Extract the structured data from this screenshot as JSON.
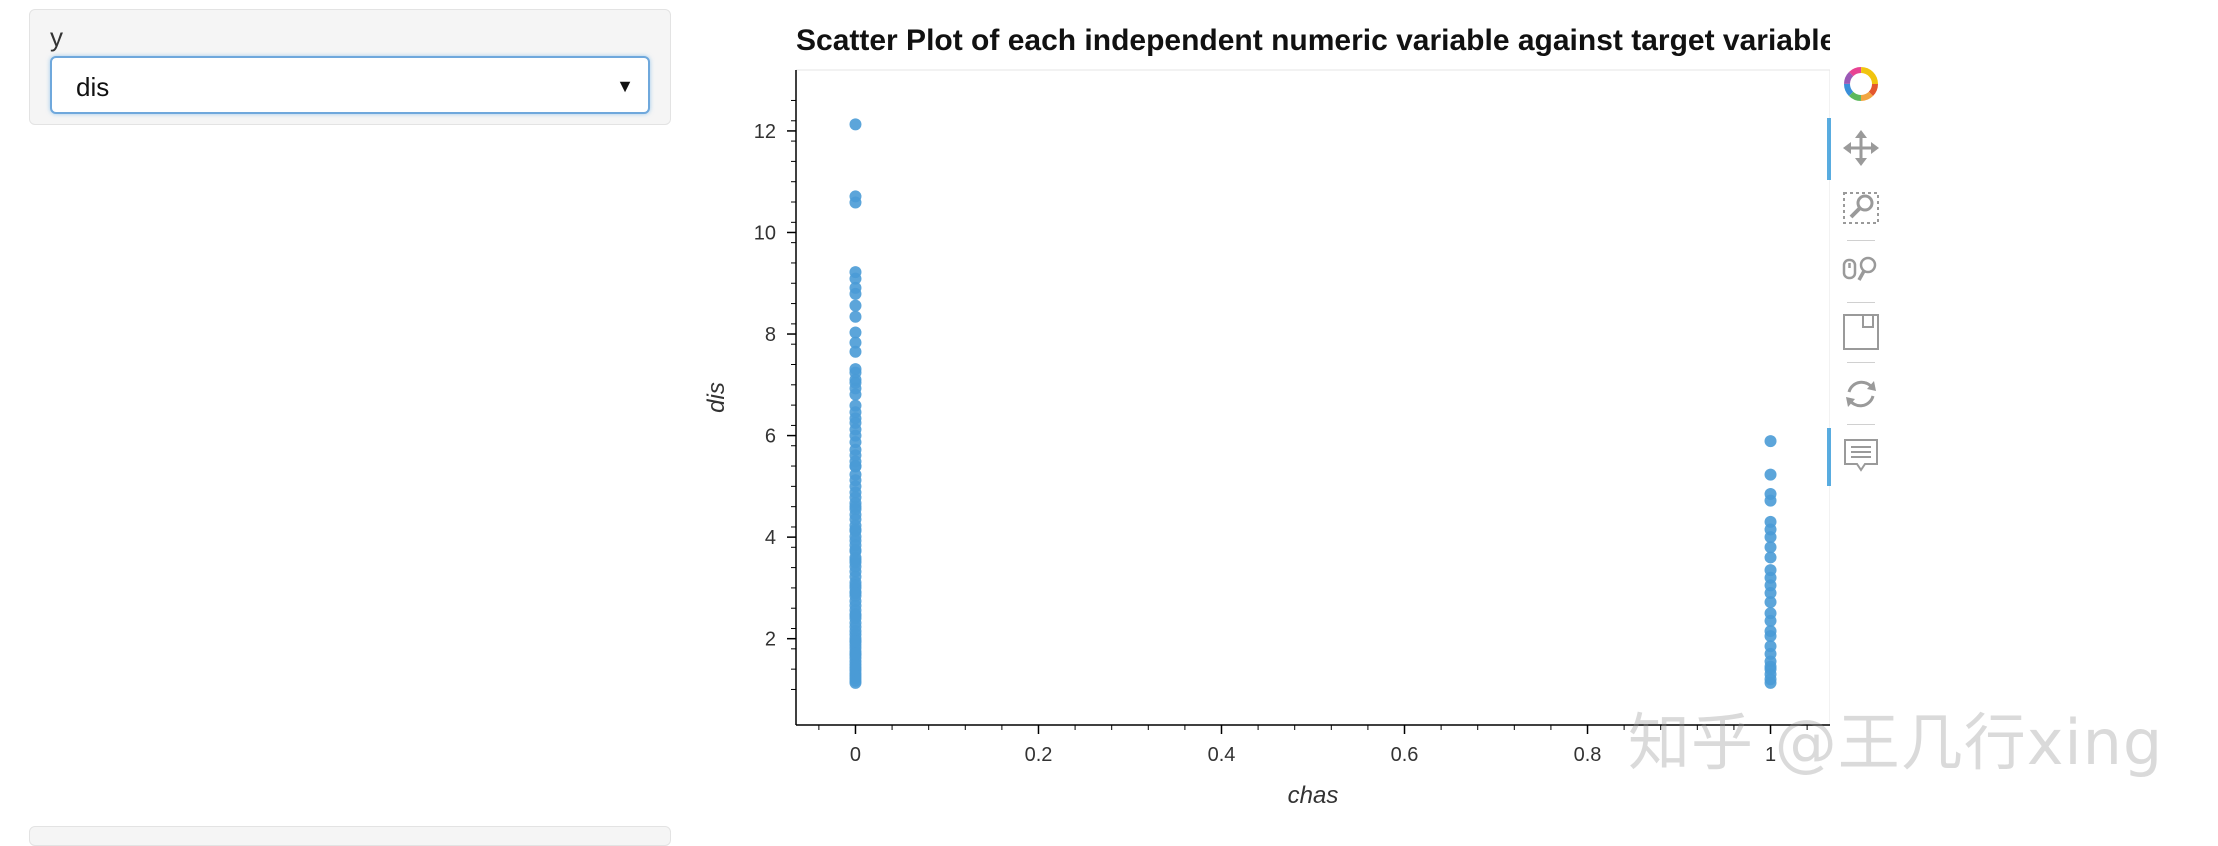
{
  "widget": {
    "label": "y",
    "selected": "dis"
  },
  "chart_data": {
    "type": "scatter",
    "title": "Scatter Plot of each independent numeric variable against target variable",
    "xlabel": "chas",
    "ylabel": "dis",
    "xlim": [
      -0.065,
      1.065
    ],
    "ylim": [
      0.3,
      13.2
    ],
    "xticks": [
      0,
      0.2,
      0.4,
      0.6,
      0.8,
      1
    ],
    "xtick_labels": [
      "0",
      "0.2",
      "0.4",
      "0.6",
      "0.8",
      "1"
    ],
    "yticks": [
      2,
      4,
      6,
      8,
      10,
      12
    ],
    "ytick_labels": [
      "2",
      "4",
      "6",
      "8",
      "10",
      "12"
    ],
    "grid": false,
    "color": "#4a9bd6",
    "series": [
      {
        "x": [
          0,
          0,
          0,
          0,
          0,
          0,
          0,
          0,
          0,
          0,
          0,
          0,
          0,
          0,
          0,
          0,
          0,
          0,
          0,
          0,
          0,
          0,
          0,
          0,
          0,
          0,
          0,
          0,
          0,
          0,
          0,
          0,
          0,
          0,
          0,
          0,
          0,
          0,
          0,
          0,
          0,
          0,
          0,
          0,
          0,
          0,
          0,
          0,
          0,
          0,
          0,
          0,
          0,
          0,
          0,
          0,
          0,
          0,
          0,
          0,
          0,
          0,
          0,
          0,
          0,
          0,
          0,
          0,
          0,
          0,
          0,
          0,
          0,
          0,
          0,
          0,
          0,
          0,
          0,
          0,
          0,
          0,
          0,
          0,
          0,
          0,
          0,
          0,
          1,
          1,
          1,
          1,
          1,
          1,
          1,
          1,
          1,
          1,
          1,
          1,
          1,
          1,
          1,
          1,
          1,
          1,
          1,
          1,
          1,
          1,
          1,
          1,
          1,
          1
        ],
        "y": [
          12.13,
          10.71,
          10.59,
          9.22,
          9.09,
          8.91,
          8.79,
          8.56,
          8.34,
          8.03,
          7.83,
          7.65,
          7.31,
          7.24,
          7.04,
          6.93,
          6.81,
          6.59,
          6.46,
          6.34,
          6.12,
          6.0,
          5.87,
          5.72,
          5.61,
          5.49,
          5.39,
          5.23,
          5.12,
          5.0,
          4.88,
          4.78,
          4.67,
          4.55,
          4.44,
          4.35,
          4.23,
          4.12,
          4.01,
          3.93,
          3.84,
          3.72,
          3.6,
          3.5,
          3.42,
          3.32,
          3.22,
          3.11,
          3.0,
          2.92,
          2.84,
          2.74,
          2.65,
          2.56,
          2.48,
          2.4,
          2.31,
          2.23,
          2.15,
          2.08,
          2.01,
          1.95,
          1.88,
          1.82,
          1.75,
          1.68,
          1.62,
          1.55,
          1.49,
          1.43,
          1.38,
          1.32,
          1.27,
          1.22,
          1.17,
          1.13,
          1.7,
          2.45,
          3.05,
          3.75,
          4.6,
          5.4,
          6.25,
          7.1,
          2.9,
          3.55,
          1.95,
          4.15,
          5.89,
          5.23,
          4.85,
          4.72,
          4.3,
          4.15,
          4.0,
          3.8,
          3.6,
          3.35,
          3.2,
          3.05,
          2.9,
          2.72,
          2.5,
          2.15,
          2.05,
          1.85,
          1.7,
          1.55,
          1.4,
          1.3,
          1.2,
          1.13,
          1.45,
          2.35
        ]
      }
    ]
  },
  "toolbar": {
    "tools": [
      {
        "icon": "bokeh-logo-icon"
      },
      {
        "icon": "pan-icon"
      },
      {
        "icon": "box-zoom-icon"
      },
      {
        "icon": "wheel-zoom-icon"
      },
      {
        "icon": "save-icon"
      },
      {
        "icon": "reset-icon"
      },
      {
        "icon": "hover-icon"
      }
    ]
  },
  "watermark": "知乎 @王几行xing"
}
